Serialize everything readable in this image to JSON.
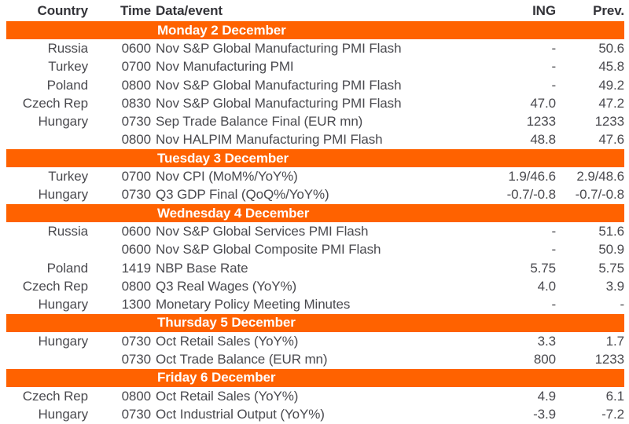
{
  "colors": {
    "accent": "#FF6200",
    "heading_text": "#333338",
    "body_text": "#4A4A4F",
    "day_text": "#FFFFFF",
    "background": "#FFFFFF"
  },
  "header": {
    "country": "Country",
    "time": "Time",
    "event": "Data/event",
    "ing": "ING",
    "prev": "Prev."
  },
  "sections": [
    {
      "day": "Monday 2 December",
      "rows": [
        {
          "country": "Russia",
          "time": "0600",
          "event": "Nov S&P Global Manufacturing PMI Flash",
          "ing": "-",
          "prev": "50.6"
        },
        {
          "country": "Turkey",
          "time": "0700",
          "event": "Nov Manufacturing PMI",
          "ing": "-",
          "prev": "45.8"
        },
        {
          "country": "Poland",
          "time": "0800",
          "event": "Nov S&P Global Manufacturing PMI Flash",
          "ing": "-",
          "prev": "49.2"
        },
        {
          "country": "Czech Rep",
          "time": "0830",
          "event": "Nov S&P Global Manufacturing PMI Flash",
          "ing": "47.0",
          "prev": "47.2"
        },
        {
          "country": "Hungary",
          "time": "0730",
          "event": "Sep Trade Balance Final (EUR mn)",
          "ing": "1233",
          "prev": "1233"
        },
        {
          "country": "",
          "time": "0800",
          "event": "Nov HALPIM Manufacturing PMI Flash",
          "ing": "48.8",
          "prev": "47.6"
        }
      ]
    },
    {
      "day": "Tuesday 3 December",
      "rows": [
        {
          "country": "Turkey",
          "time": "0700",
          "event": "Nov CPI (MoM%/YoY%)",
          "ing": "1.9/46.6",
          "prev": "2.9/48.6"
        },
        {
          "country": "Hungary",
          "time": "0730",
          "event": "Q3 GDP Final (QoQ%/YoY%)",
          "ing": "-0.7/-0.8",
          "prev": "-0.7/-0.8"
        }
      ]
    },
    {
      "day": "Wednesday 4 December",
      "rows": [
        {
          "country": "Russia",
          "time": "0600",
          "event": "Nov S&P Global Services PMI Flash",
          "ing": "-",
          "prev": "51.6"
        },
        {
          "country": "",
          "time": "0600",
          "event": "Nov S&P Global Composite PMI Flash",
          "ing": "-",
          "prev": "50.9"
        },
        {
          "country": "Poland",
          "time": "1419",
          "event": "NBP Base Rate",
          "ing": "5.75",
          "prev": "5.75"
        },
        {
          "country": "Czech Rep",
          "time": "0800",
          "event": "Q3 Real Wages (YoY%)",
          "ing": "4.0",
          "prev": "3.9"
        },
        {
          "country": "Hungary",
          "time": "1300",
          "event": "Monetary Policy Meeting Minutes",
          "ing": "-",
          "prev": "-"
        }
      ]
    },
    {
      "day": "Thursday 5 December",
      "rows": [
        {
          "country": "Hungary",
          "time": "0730",
          "event": "Oct Retail Sales (YoY%)",
          "ing": "3.3",
          "prev": "1.7"
        },
        {
          "country": "",
          "time": "0730",
          "event": "Oct Trade Balance (EUR mn)",
          "ing": "800",
          "prev": "1233"
        }
      ]
    },
    {
      "day": "Friday 6 December",
      "rows": [
        {
          "country": "Czech Rep",
          "time": "0800",
          "event": "Oct Retail Sales (YoY%)",
          "ing": "4.9",
          "prev": "6.1"
        },
        {
          "country": "Hungary",
          "time": "0730",
          "event": "Oct Industrial Output (YoY%)",
          "ing": "-3.9",
          "prev": "-7.2"
        }
      ]
    }
  ]
}
